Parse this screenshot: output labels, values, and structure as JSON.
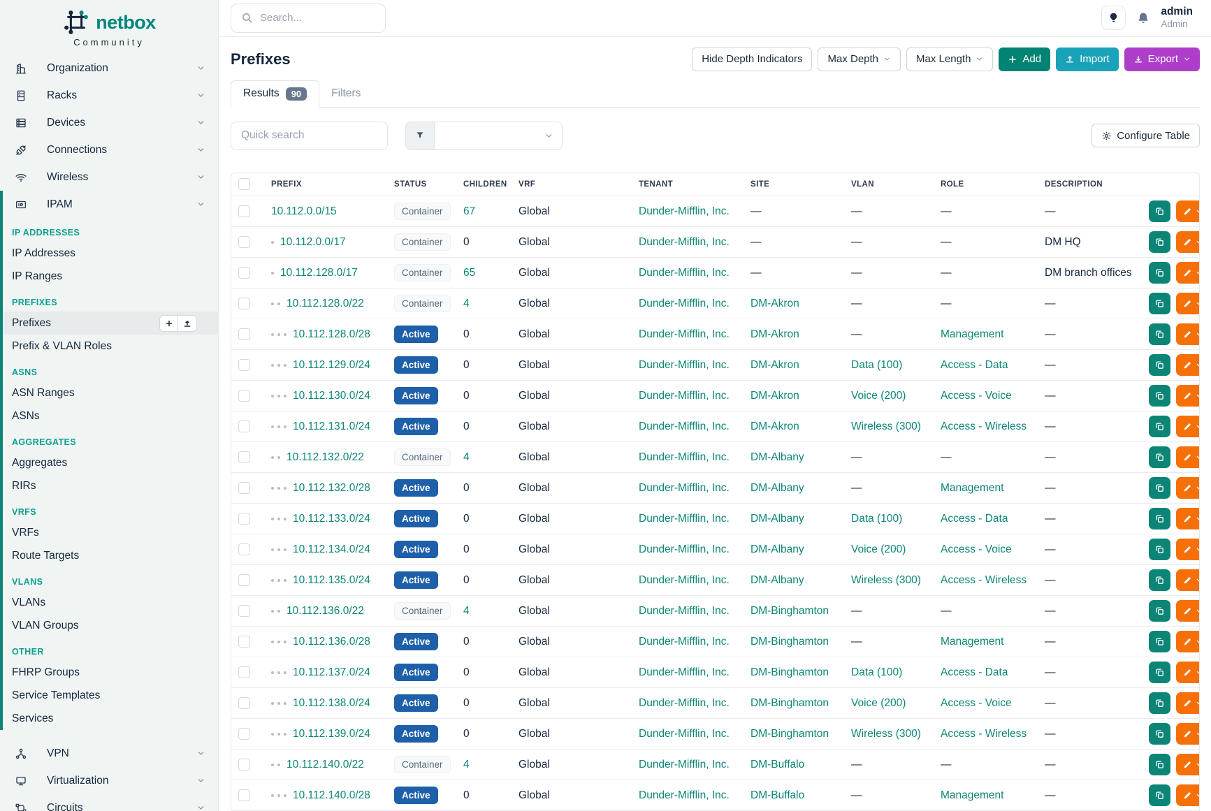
{
  "brand": {
    "name": "netbox",
    "edition": "Community"
  },
  "topbar": {
    "search_placeholder": "Search...",
    "user": {
      "name": "admin",
      "role": "Admin"
    }
  },
  "sidebar": {
    "nav": [
      {
        "label": "Organization",
        "icon": "building-icon"
      },
      {
        "label": "Racks",
        "icon": "rack-icon"
      },
      {
        "label": "Devices",
        "icon": "devices-icon"
      },
      {
        "label": "Connections",
        "icon": "plug-icon"
      },
      {
        "label": "Wireless",
        "icon": "wifi-icon"
      },
      {
        "label": "IPAM",
        "icon": "ipam-icon"
      }
    ],
    "ipam_sections": [
      {
        "heading": "IP ADDRESSES",
        "items": [
          {
            "label": "IP Addresses"
          },
          {
            "label": "IP Ranges"
          }
        ]
      },
      {
        "heading": "PREFIXES",
        "items": [
          {
            "label": "Prefixes",
            "active": true
          },
          {
            "label": "Prefix & VLAN Roles"
          }
        ]
      },
      {
        "heading": "ASNS",
        "items": [
          {
            "label": "ASN Ranges"
          },
          {
            "label": "ASNs"
          }
        ]
      },
      {
        "heading": "AGGREGATES",
        "items": [
          {
            "label": "Aggregates"
          },
          {
            "label": "RIRs"
          }
        ]
      },
      {
        "heading": "VRFS",
        "items": [
          {
            "label": "VRFs"
          },
          {
            "label": "Route Targets"
          }
        ]
      },
      {
        "heading": "VLANS",
        "items": [
          {
            "label": "VLANs"
          },
          {
            "label": "VLAN Groups"
          }
        ]
      },
      {
        "heading": "OTHER",
        "items": [
          {
            "label": "FHRP Groups"
          },
          {
            "label": "Service Templates"
          },
          {
            "label": "Services"
          }
        ]
      }
    ],
    "nav_bottom": [
      {
        "label": "VPN",
        "icon": "vpn-icon"
      },
      {
        "label": "Virtualization",
        "icon": "virtualization-icon"
      },
      {
        "label": "Circuits",
        "icon": "circuits-icon"
      }
    ]
  },
  "page": {
    "title": "Prefixes",
    "actions": {
      "hide_depth": "Hide Depth Indicators",
      "max_depth": "Max Depth",
      "max_length": "Max Length",
      "add": "Add",
      "import": "Import",
      "export": "Export"
    },
    "tabs": [
      {
        "label": "Results",
        "badge": "90",
        "active": true
      },
      {
        "label": "Filters"
      }
    ],
    "toolbar": {
      "quick_search_placeholder": "Quick search",
      "configure_table": "Configure Table"
    }
  },
  "table": {
    "columns": [
      "",
      "PREFIX",
      "STATUS",
      "CHILDREN",
      "VRF",
      "TENANT",
      "SITE",
      "VLAN",
      "ROLE",
      "DESCRIPTION",
      ""
    ],
    "empty_value": "—",
    "rows": [
      {
        "depth": 0,
        "prefix": "10.112.0.0/15",
        "status": "Container",
        "children": "67",
        "vrf": "Global",
        "tenant": "Dunder-Mifflin, Inc.",
        "site": "",
        "vlan": "",
        "role": "",
        "description": ""
      },
      {
        "depth": 1,
        "prefix": "10.112.0.0/17",
        "status": "Container",
        "children": "0",
        "vrf": "Global",
        "tenant": "Dunder-Mifflin, Inc.",
        "site": "",
        "vlan": "",
        "role": "",
        "description": "DM HQ"
      },
      {
        "depth": 1,
        "prefix": "10.112.128.0/17",
        "status": "Container",
        "children": "65",
        "vrf": "Global",
        "tenant": "Dunder-Mifflin, Inc.",
        "site": "",
        "vlan": "",
        "role": "",
        "description": "DM branch offices"
      },
      {
        "depth": 2,
        "prefix": "10.112.128.0/22",
        "status": "Container",
        "children": "4",
        "vrf": "Global",
        "tenant": "Dunder-Mifflin, Inc.",
        "site": "DM-Akron",
        "vlan": "",
        "role": "",
        "description": ""
      },
      {
        "depth": 3,
        "prefix": "10.112.128.0/28",
        "status": "Active",
        "children": "0",
        "vrf": "Global",
        "tenant": "Dunder-Mifflin, Inc.",
        "site": "DM-Akron",
        "vlan": "",
        "role": "Management",
        "description": ""
      },
      {
        "depth": 3,
        "prefix": "10.112.129.0/24",
        "status": "Active",
        "children": "0",
        "vrf": "Global",
        "tenant": "Dunder-Mifflin, Inc.",
        "site": "DM-Akron",
        "vlan": "Data (100)",
        "role": "Access - Data",
        "description": ""
      },
      {
        "depth": 3,
        "prefix": "10.112.130.0/24",
        "status": "Active",
        "children": "0",
        "vrf": "Global",
        "tenant": "Dunder-Mifflin, Inc.",
        "site": "DM-Akron",
        "vlan": "Voice (200)",
        "role": "Access - Voice",
        "description": ""
      },
      {
        "depth": 3,
        "prefix": "10.112.131.0/24",
        "status": "Active",
        "children": "0",
        "vrf": "Global",
        "tenant": "Dunder-Mifflin, Inc.",
        "site": "DM-Akron",
        "vlan": "Wireless (300)",
        "role": "Access - Wireless",
        "description": ""
      },
      {
        "depth": 2,
        "prefix": "10.112.132.0/22",
        "status": "Container",
        "children": "4",
        "vrf": "Global",
        "tenant": "Dunder-Mifflin, Inc.",
        "site": "DM-Albany",
        "vlan": "",
        "role": "",
        "description": ""
      },
      {
        "depth": 3,
        "prefix": "10.112.132.0/28",
        "status": "Active",
        "children": "0",
        "vrf": "Global",
        "tenant": "Dunder-Mifflin, Inc.",
        "site": "DM-Albany",
        "vlan": "",
        "role": "Management",
        "description": ""
      },
      {
        "depth": 3,
        "prefix": "10.112.133.0/24",
        "status": "Active",
        "children": "0",
        "vrf": "Global",
        "tenant": "Dunder-Mifflin, Inc.",
        "site": "DM-Albany",
        "vlan": "Data (100)",
        "role": "Access - Data",
        "description": ""
      },
      {
        "depth": 3,
        "prefix": "10.112.134.0/24",
        "status": "Active",
        "children": "0",
        "vrf": "Global",
        "tenant": "Dunder-Mifflin, Inc.",
        "site": "DM-Albany",
        "vlan": "Voice (200)",
        "role": "Access - Voice",
        "description": ""
      },
      {
        "depth": 3,
        "prefix": "10.112.135.0/24",
        "status": "Active",
        "children": "0",
        "vrf": "Global",
        "tenant": "Dunder-Mifflin, Inc.",
        "site": "DM-Albany",
        "vlan": "Wireless (300)",
        "role": "Access - Wireless",
        "description": ""
      },
      {
        "depth": 2,
        "prefix": "10.112.136.0/22",
        "status": "Container",
        "children": "4",
        "vrf": "Global",
        "tenant": "Dunder-Mifflin, Inc.",
        "site": "DM-Binghamton",
        "vlan": "",
        "role": "",
        "description": ""
      },
      {
        "depth": 3,
        "prefix": "10.112.136.0/28",
        "status": "Active",
        "children": "0",
        "vrf": "Global",
        "tenant": "Dunder-Mifflin, Inc.",
        "site": "DM-Binghamton",
        "vlan": "",
        "role": "Management",
        "description": ""
      },
      {
        "depth": 3,
        "prefix": "10.112.137.0/24",
        "status": "Active",
        "children": "0",
        "vrf": "Global",
        "tenant": "Dunder-Mifflin, Inc.",
        "site": "DM-Binghamton",
        "vlan": "Data (100)",
        "role": "Access - Data",
        "description": ""
      },
      {
        "depth": 3,
        "prefix": "10.112.138.0/24",
        "status": "Active",
        "children": "0",
        "vrf": "Global",
        "tenant": "Dunder-Mifflin, Inc.",
        "site": "DM-Binghamton",
        "vlan": "Voice (200)",
        "role": "Access - Voice",
        "description": ""
      },
      {
        "depth": 3,
        "prefix": "10.112.139.0/24",
        "status": "Active",
        "children": "0",
        "vrf": "Global",
        "tenant": "Dunder-Mifflin, Inc.",
        "site": "DM-Binghamton",
        "vlan": "Wireless (300)",
        "role": "Access - Wireless",
        "description": ""
      },
      {
        "depth": 2,
        "prefix": "10.112.140.0/22",
        "status": "Container",
        "children": "4",
        "vrf": "Global",
        "tenant": "Dunder-Mifflin, Inc.",
        "site": "DM-Buffalo",
        "vlan": "",
        "role": "",
        "description": ""
      },
      {
        "depth": 3,
        "prefix": "10.112.140.0/28",
        "status": "Active",
        "children": "0",
        "vrf": "Global",
        "tenant": "Dunder-Mifflin, Inc.",
        "site": "DM-Buffalo",
        "vlan": "",
        "role": "Management",
        "description": ""
      }
    ]
  },
  "colors": {
    "teal_accent": "#0c8577",
    "active_badge_blue": "#1e5fa9",
    "add_button": "#028374",
    "import_button": "#1aa2b8",
    "export_button": "#ae3ec9",
    "edit_button": "#f76f07",
    "logo_teal": "#00857e",
    "logo_navy": "#13243a"
  }
}
